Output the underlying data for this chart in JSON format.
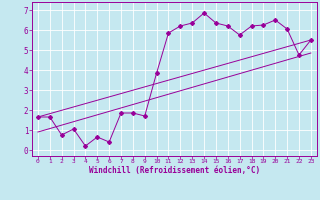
{
  "xlabel": "Windchill (Refroidissement éolien,°C)",
  "bg_color": "#c5e8f0",
  "line_color": "#990099",
  "grid_color": "#ffffff",
  "xlim": [
    -0.5,
    23.5
  ],
  "ylim": [
    -0.3,
    7.4
  ],
  "xticks": [
    0,
    1,
    2,
    3,
    4,
    5,
    6,
    7,
    8,
    9,
    10,
    11,
    12,
    13,
    14,
    15,
    16,
    17,
    18,
    19,
    20,
    21,
    22,
    23
  ],
  "yticks": [
    0,
    1,
    2,
    3,
    4,
    5,
    6,
    7
  ],
  "line1_x": [
    0,
    1,
    2,
    3,
    4,
    5,
    6,
    7,
    8,
    9,
    10,
    11,
    12,
    13,
    14,
    15,
    16,
    17,
    18,
    19,
    20,
    21,
    22,
    23
  ],
  "line1_y": [
    1.65,
    1.65,
    0.75,
    1.05,
    0.2,
    0.65,
    0.4,
    1.85,
    1.85,
    1.7,
    3.85,
    5.85,
    6.2,
    6.35,
    6.85,
    6.35,
    6.2,
    5.75,
    6.2,
    6.25,
    6.5,
    6.05,
    4.75,
    5.5
  ],
  "trend1_x": [
    0,
    23
  ],
  "trend1_y": [
    1.65,
    5.5
  ],
  "trend2_x": [
    0,
    23
  ],
  "trend2_y": [
    0.9,
    4.85
  ]
}
